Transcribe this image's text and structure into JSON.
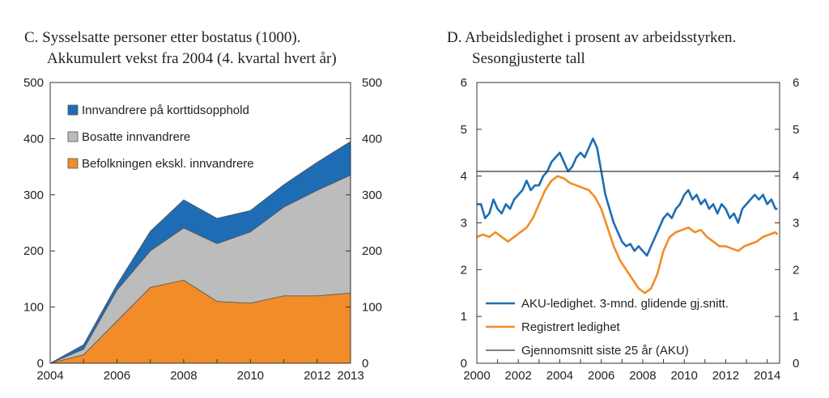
{
  "chart_data": [
    {
      "type": "area",
      "stacked": true,
      "title": "C.  Sysselsatte personer etter bostatus (1000).",
      "subtitle": "Akkumulert vekst fra 2004 (4. kvartal hvert år)",
      "x": [
        2004,
        2005,
        2006,
        2007,
        2008,
        2009,
        2010,
        2011,
        2012,
        2013
      ],
      "x_ticks": [
        2004,
        2006,
        2008,
        2010,
        2012,
        2013
      ],
      "x_tick_labels": [
        "2004",
        "2006",
        "2008",
        "2010",
        "2012",
        "2013"
      ],
      "ylim": [
        0,
        500
      ],
      "y_ticks": [
        0,
        100,
        200,
        300,
        400,
        500
      ],
      "y_tick_labels": [
        "0",
        "100",
        "200",
        "300",
        "400",
        "500"
      ],
      "series": [
        {
          "name": "Befolkningen ekskl. innvandrere",
          "color": "#f28c28",
          "values": [
            0,
            15,
            75,
            135,
            148,
            110,
            107,
            120,
            120,
            125
          ]
        },
        {
          "name": "Bosatte innvandrere",
          "color": "#bcbcbc",
          "values": [
            0,
            10,
            55,
            65,
            93,
            103,
            127,
            158,
            188,
            210
          ]
        },
        {
          "name": "Innvandrere på korttidsopphold",
          "color": "#1e6db4",
          "values": [
            0,
            8,
            10,
            35,
            50,
            45,
            38,
            40,
            50,
            60
          ]
        }
      ],
      "legend_order": [
        "Innvandrere på korttidsopphold",
        "Bosatte innvandrere",
        "Befolkningen ekskl. innvandrere"
      ]
    },
    {
      "type": "line",
      "title": "D.  Arbeidsledighet i prosent av arbeidsstyrken.",
      "subtitle": "Sesongjusterte tall",
      "xlim": [
        2000,
        2014.6
      ],
      "x_ticks": [
        2000,
        2002,
        2004,
        2006,
        2008,
        2010,
        2012,
        2014
      ],
      "x_tick_labels": [
        "2000",
        "2002",
        "2004",
        "2006",
        "2008",
        "2010",
        "2012",
        "2014"
      ],
      "ylim": [
        0,
        6
      ],
      "y_ticks": [
        0,
        1,
        2,
        3,
        4,
        5,
        6
      ],
      "y_tick_labels": [
        "0",
        "1",
        "2",
        "3",
        "4",
        "5",
        "6"
      ],
      "series": [
        {
          "name": "AKU-ledighet. 3-mnd. glidende gj.snitt.",
          "color": "#1e6db4",
          "points": [
            [
              2000.0,
              3.4
            ],
            [
              2000.2,
              3.4
            ],
            [
              2000.4,
              3.1
            ],
            [
              2000.6,
              3.2
            ],
            [
              2000.8,
              3.5
            ],
            [
              2001.0,
              3.3
            ],
            [
              2001.2,
              3.2
            ],
            [
              2001.4,
              3.4
            ],
            [
              2001.6,
              3.3
            ],
            [
              2001.8,
              3.5
            ],
            [
              2002.0,
              3.6
            ],
            [
              2002.2,
              3.7
            ],
            [
              2002.4,
              3.9
            ],
            [
              2002.6,
              3.7
            ],
            [
              2002.8,
              3.8
            ],
            [
              2003.0,
              3.8
            ],
            [
              2003.2,
              4.0
            ],
            [
              2003.4,
              4.1
            ],
            [
              2003.6,
              4.3
            ],
            [
              2003.8,
              4.4
            ],
            [
              2004.0,
              4.5
            ],
            [
              2004.2,
              4.3
            ],
            [
              2004.4,
              4.1
            ],
            [
              2004.6,
              4.2
            ],
            [
              2004.8,
              4.4
            ],
            [
              2005.0,
              4.5
            ],
            [
              2005.2,
              4.4
            ],
            [
              2005.4,
              4.6
            ],
            [
              2005.6,
              4.8
            ],
            [
              2005.8,
              4.6
            ],
            [
              2006.0,
              4.1
            ],
            [
              2006.2,
              3.6
            ],
            [
              2006.4,
              3.3
            ],
            [
              2006.6,
              3.0
            ],
            [
              2006.8,
              2.8
            ],
            [
              2007.0,
              2.6
            ],
            [
              2007.2,
              2.5
            ],
            [
              2007.4,
              2.55
            ],
            [
              2007.6,
              2.4
            ],
            [
              2007.8,
              2.5
            ],
            [
              2008.0,
              2.4
            ],
            [
              2008.2,
              2.3
            ],
            [
              2008.4,
              2.5
            ],
            [
              2008.6,
              2.7
            ],
            [
              2008.8,
              2.9
            ],
            [
              2009.0,
              3.1
            ],
            [
              2009.2,
              3.2
            ],
            [
              2009.4,
              3.1
            ],
            [
              2009.6,
              3.3
            ],
            [
              2009.8,
              3.4
            ],
            [
              2010.0,
              3.6
            ],
            [
              2010.2,
              3.7
            ],
            [
              2010.4,
              3.5
            ],
            [
              2010.6,
              3.6
            ],
            [
              2010.8,
              3.4
            ],
            [
              2011.0,
              3.5
            ],
            [
              2011.2,
              3.3
            ],
            [
              2011.4,
              3.4
            ],
            [
              2011.6,
              3.2
            ],
            [
              2011.8,
              3.4
            ],
            [
              2012.0,
              3.3
            ],
            [
              2012.2,
              3.1
            ],
            [
              2012.4,
              3.2
            ],
            [
              2012.6,
              3.0
            ],
            [
              2012.8,
              3.3
            ],
            [
              2013.0,
              3.4
            ],
            [
              2013.2,
              3.5
            ],
            [
              2013.4,
              3.6
            ],
            [
              2013.6,
              3.5
            ],
            [
              2013.8,
              3.6
            ],
            [
              2014.0,
              3.4
            ],
            [
              2014.2,
              3.5
            ],
            [
              2014.4,
              3.3
            ],
            [
              2014.5,
              3.3
            ]
          ]
        },
        {
          "name": "Registrert ledighet",
          "color": "#f28c28",
          "points": [
            [
              2000.0,
              2.7
            ],
            [
              2000.3,
              2.75
            ],
            [
              2000.6,
              2.7
            ],
            [
              2000.9,
              2.8
            ],
            [
              2001.2,
              2.7
            ],
            [
              2001.5,
              2.6
            ],
            [
              2001.8,
              2.7
            ],
            [
              2002.1,
              2.8
            ],
            [
              2002.4,
              2.9
            ],
            [
              2002.7,
              3.1
            ],
            [
              2003.0,
              3.4
            ],
            [
              2003.3,
              3.7
            ],
            [
              2003.6,
              3.9
            ],
            [
              2003.9,
              4.0
            ],
            [
              2004.2,
              3.95
            ],
            [
              2004.5,
              3.85
            ],
            [
              2004.8,
              3.8
            ],
            [
              2005.1,
              3.75
            ],
            [
              2005.4,
              3.7
            ],
            [
              2005.7,
              3.55
            ],
            [
              2006.0,
              3.3
            ],
            [
              2006.3,
              2.9
            ],
            [
              2006.6,
              2.5
            ],
            [
              2006.9,
              2.2
            ],
            [
              2007.2,
              2.0
            ],
            [
              2007.5,
              1.8
            ],
            [
              2007.8,
              1.6
            ],
            [
              2008.1,
              1.5
            ],
            [
              2008.4,
              1.6
            ],
            [
              2008.7,
              1.9
            ],
            [
              2009.0,
              2.4
            ],
            [
              2009.3,
              2.7
            ],
            [
              2009.6,
              2.8
            ],
            [
              2009.9,
              2.85
            ],
            [
              2010.2,
              2.9
            ],
            [
              2010.5,
              2.8
            ],
            [
              2010.8,
              2.85
            ],
            [
              2011.1,
              2.7
            ],
            [
              2011.4,
              2.6
            ],
            [
              2011.7,
              2.5
            ],
            [
              2012.0,
              2.5
            ],
            [
              2012.3,
              2.45
            ],
            [
              2012.6,
              2.4
            ],
            [
              2012.9,
              2.5
            ],
            [
              2013.2,
              2.55
            ],
            [
              2013.5,
              2.6
            ],
            [
              2013.8,
              2.7
            ],
            [
              2014.1,
              2.75
            ],
            [
              2014.4,
              2.8
            ],
            [
              2014.5,
              2.75
            ]
          ]
        },
        {
          "name": "Gjennomsnitt siste 25 år (AKU)",
          "color": "#333333",
          "points": [
            [
              2000.0,
              4.1
            ],
            [
              2014.6,
              4.1
            ]
          ]
        }
      ],
      "legend_order": [
        "AKU-ledighet. 3-mnd. glidende gj.snitt.",
        "Registrert ledighet",
        "Gjennomsnitt siste 25 år (AKU)"
      ]
    }
  ]
}
